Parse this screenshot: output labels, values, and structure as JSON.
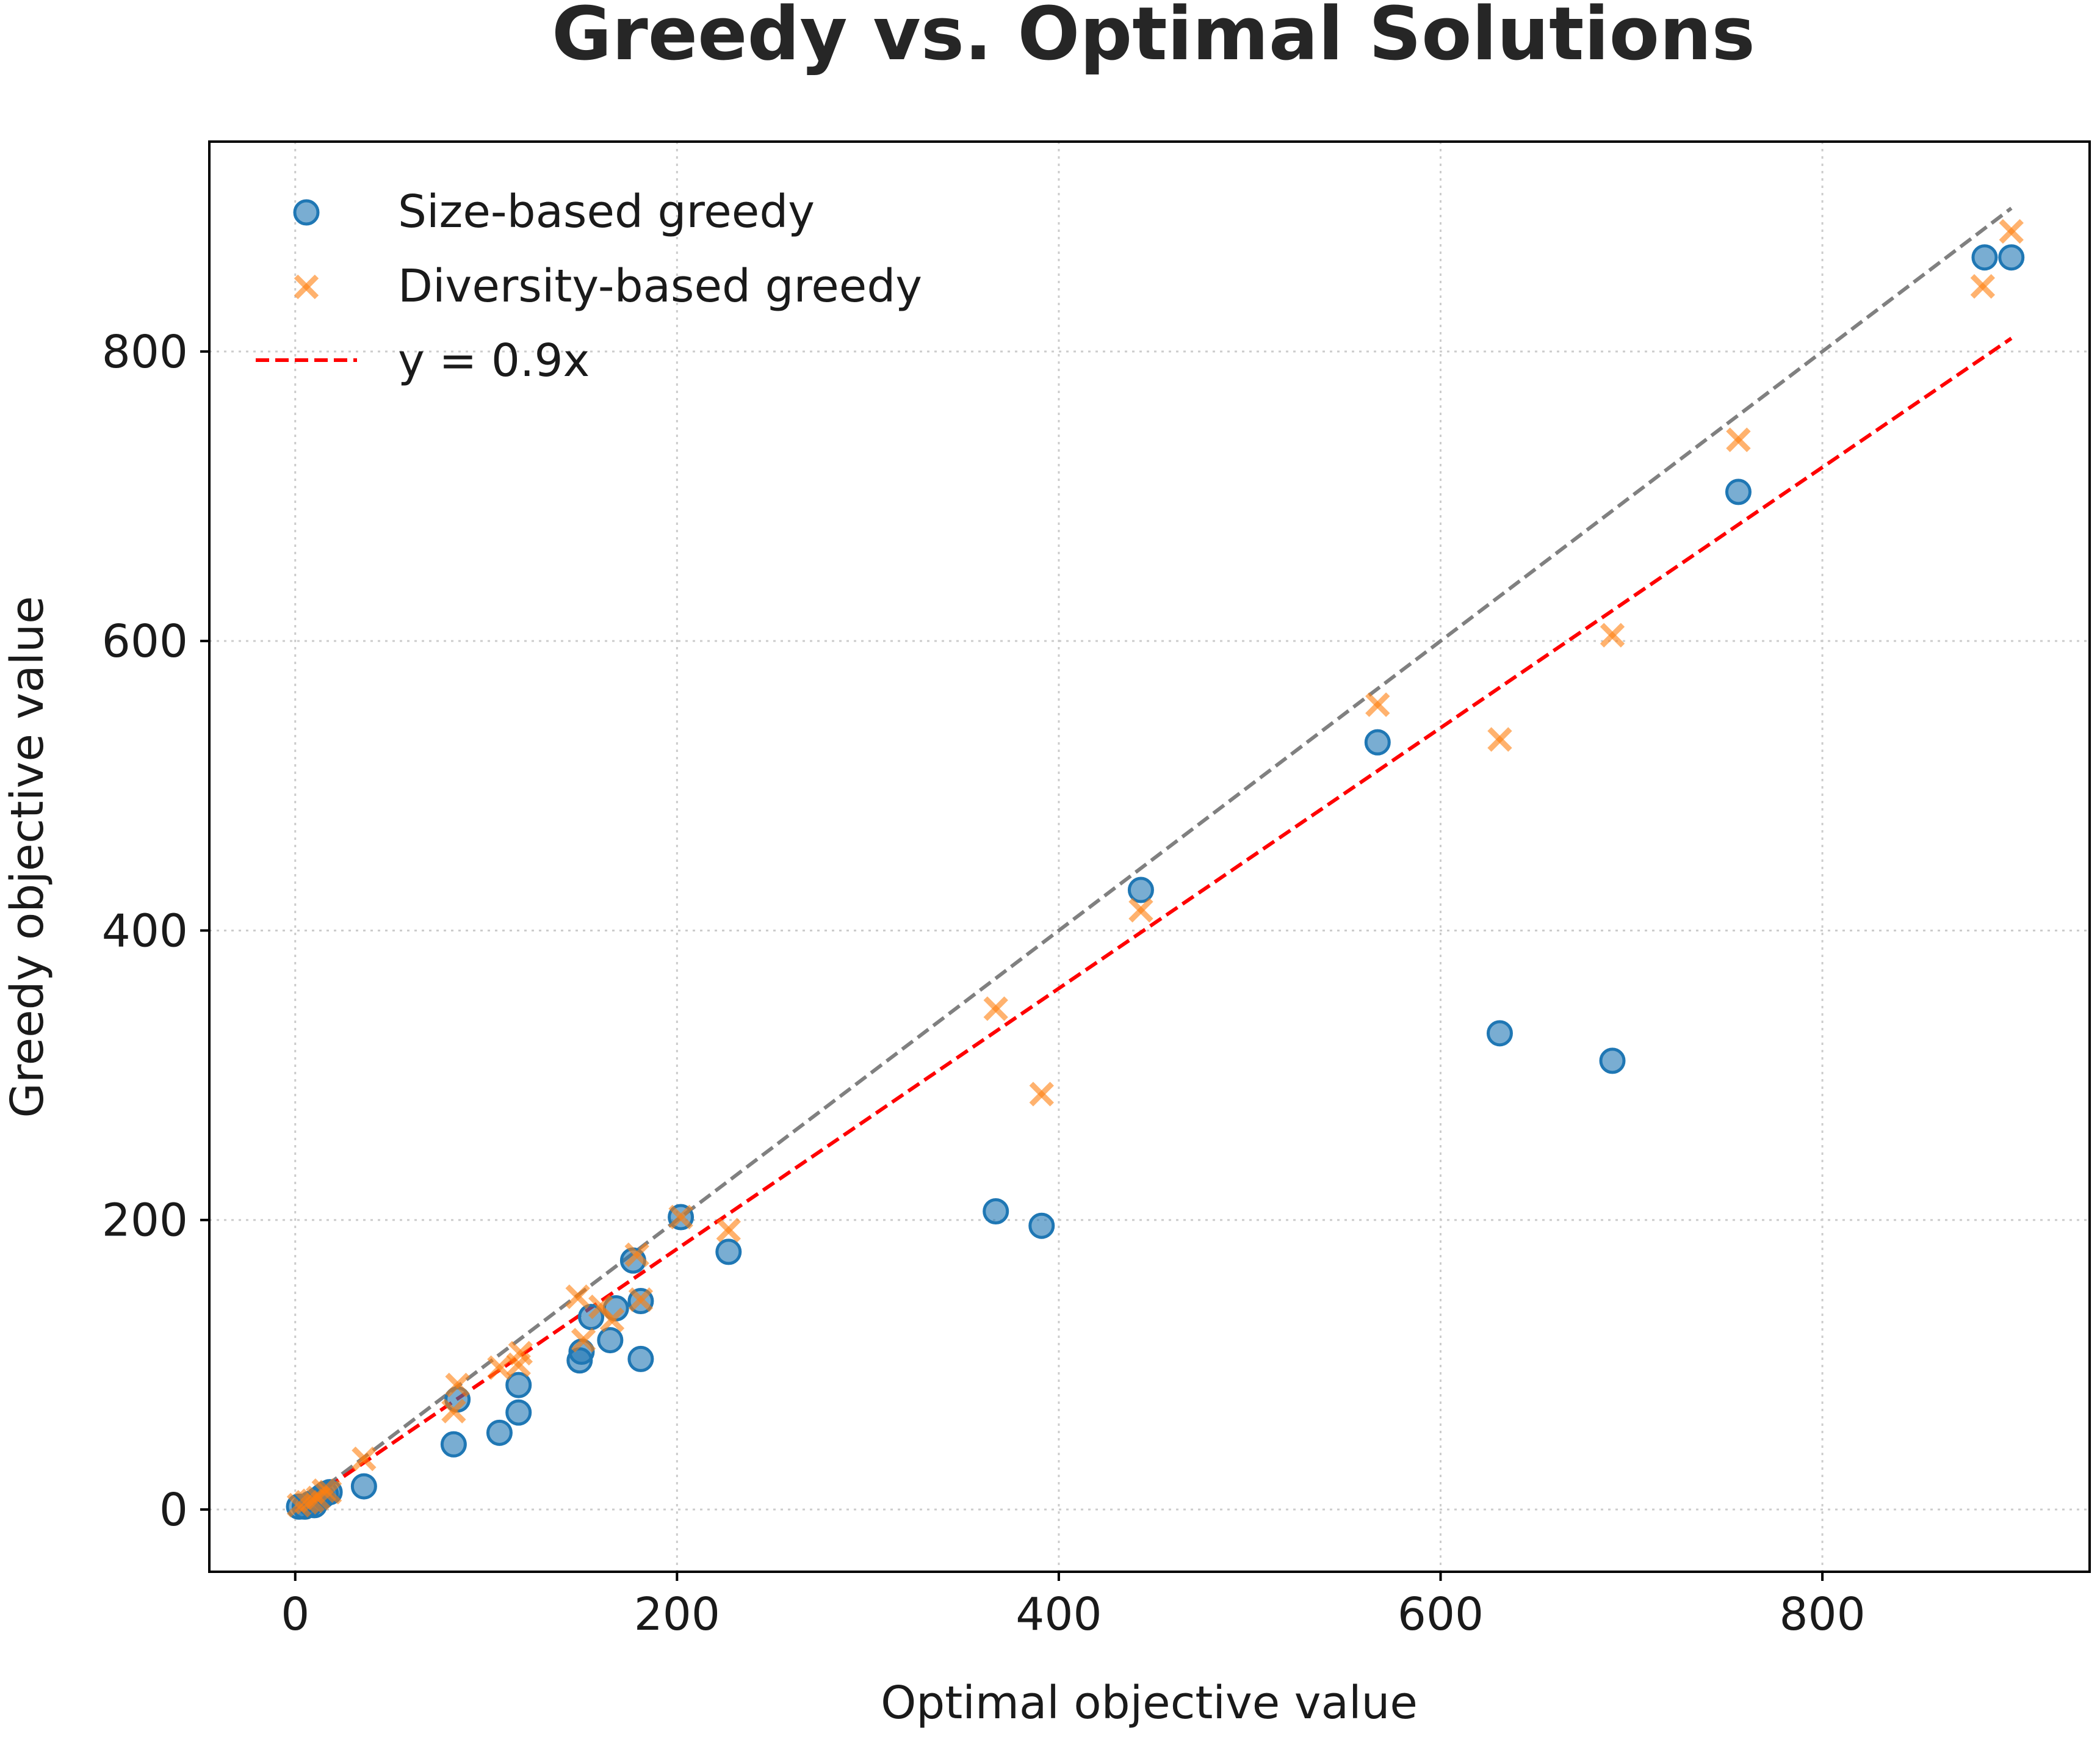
{
  "chart_data": {
    "type": "scatter",
    "title": "Greedy vs. Optimal Solutions",
    "xlabel": "Optimal objective value",
    "ylabel": "Greedy objective value",
    "xlim": [
      -45,
      940
    ],
    "ylim": [
      -43,
      945
    ],
    "xticks": [
      0,
      200,
      400,
      600,
      800
    ],
    "yticks": [
      0,
      200,
      400,
      600,
      800
    ],
    "grid": true,
    "legend_position": "top-left",
    "series": [
      {
        "name": "Size-based greedy",
        "marker": "circle",
        "color": "#1f77b4",
        "points": [
          [
            2,
            2
          ],
          [
            5,
            2
          ],
          [
            8,
            4
          ],
          [
            10,
            3
          ],
          [
            12,
            7
          ],
          [
            14,
            9
          ],
          [
            16,
            11
          ],
          [
            18,
            12
          ],
          [
            36,
            16
          ],
          [
            83,
            45
          ],
          [
            85,
            76
          ],
          [
            107,
            53
          ],
          [
            117,
            67
          ],
          [
            117,
            86
          ],
          [
            149,
            103
          ],
          [
            150,
            109
          ],
          [
            155,
            133
          ],
          [
            165,
            117
          ],
          [
            168,
            139
          ],
          [
            177,
            172
          ],
          [
            181,
            144
          ],
          [
            181,
            104
          ],
          [
            202,
            202
          ],
          [
            227,
            178
          ],
          [
            367,
            206
          ],
          [
            391,
            196
          ],
          [
            443,
            428
          ],
          [
            567,
            530
          ],
          [
            631,
            329
          ],
          [
            690,
            310
          ],
          [
            756,
            703
          ],
          [
            885,
            865
          ],
          [
            899,
            865
          ]
        ]
      },
      {
        "name": "Diversity-based greedy",
        "marker": "x",
        "color": "#ff7f0e",
        "points": [
          [
            2,
            3
          ],
          [
            6,
            5
          ],
          [
            9,
            6
          ],
          [
            12,
            8
          ],
          [
            15,
            13
          ],
          [
            18,
            12
          ],
          [
            36,
            35
          ],
          [
            83,
            68
          ],
          [
            85,
            86
          ],
          [
            107,
            98
          ],
          [
            117,
            100
          ],
          [
            118,
            108
          ],
          [
            148,
            147
          ],
          [
            151,
            117
          ],
          [
            160,
            140
          ],
          [
            166,
            131
          ],
          [
            179,
            176
          ],
          [
            181,
            145
          ],
          [
            202,
            202
          ],
          [
            227,
            193
          ],
          [
            367,
            346
          ],
          [
            391,
            287
          ],
          [
            443,
            414
          ],
          [
            567,
            556
          ],
          [
            631,
            532
          ],
          [
            690,
            604
          ],
          [
            756,
            739
          ],
          [
            884,
            845
          ],
          [
            899,
            883
          ]
        ]
      }
    ],
    "reference_lines": [
      {
        "name": "y = 0.9x",
        "slope": 0.9,
        "x_range": [
          0,
          899
        ],
        "color": "#ff0000",
        "style": "dashed"
      },
      {
        "slope": 1.0,
        "x_range": [
          0,
          899
        ],
        "color": "#808080",
        "style": "dashed"
      }
    ]
  }
}
